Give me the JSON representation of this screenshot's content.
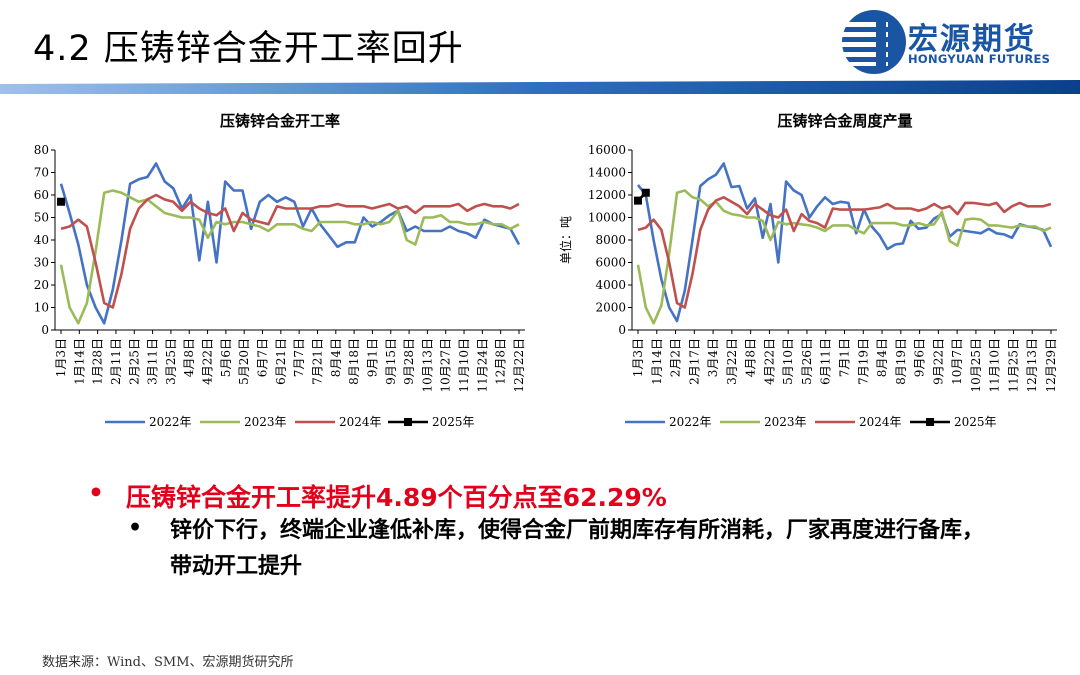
{
  "page": {
    "title": "4.2 压铸锌合金开工率回升",
    "logo_cn": "宏源期货",
    "logo_en": "HONGYUAN FUTURES",
    "bullet1": "压铸锌合金开工率提升4.89个百分点至62.29%",
    "bullet2": "锌价下行，终端企业逢低补库，使得合金厂前期库存有所消耗，厂家再度进行备库，带动开工提升",
    "source": "数据来源：Wind、SMM、宏源期货研究所",
    "colors": {
      "accent_red": "#e3001b",
      "brand_blue": "#1a55a3"
    }
  },
  "chart_data": [
    {
      "type": "line",
      "title": "压铸锌合金开工率",
      "ylabel": "",
      "ylim": [
        0,
        80
      ],
      "yticks": [
        0,
        10,
        20,
        30,
        40,
        50,
        60,
        70,
        80
      ],
      "xlabels": [
        "1月3日",
        "1月14日",
        "1月28日",
        "2月11日",
        "2月25日",
        "3月11日",
        "3月25日",
        "4月8日",
        "4月22日",
        "5月6日",
        "5月20日",
        "6月7日",
        "6月21日",
        "7月7日",
        "7月21日",
        "8月4日",
        "8月18日",
        "9月1日",
        "9月15日",
        "9月28日",
        "10月13日",
        "10月27日",
        "11月10日",
        "11月24日",
        "12月8日",
        "12月22日"
      ],
      "series": [
        {
          "name": "2022年",
          "color": "#4472c4",
          "values": [
            65,
            52,
            38,
            20,
            10,
            3,
            18,
            40,
            65,
            67,
            68,
            74,
            66,
            63,
            54,
            60,
            31,
            57,
            30,
            66,
            62,
            62,
            45,
            57,
            60,
            57,
            59,
            57,
            46,
            54,
            47,
            42,
            37,
            39,
            39,
            50,
            46,
            48,
            51,
            53,
            44,
            46,
            44,
            44,
            44,
            46,
            44,
            43,
            41,
            49,
            47,
            46,
            45,
            38
          ]
        },
        {
          "name": "2023年",
          "color": "#9bbb59",
          "values": [
            29,
            10,
            3,
            12,
            35,
            61,
            62,
            61,
            59,
            57,
            58,
            55,
            52,
            51,
            50,
            50,
            49,
            41,
            48,
            47,
            48,
            48,
            47,
            46,
            44,
            47,
            47,
            47,
            45,
            44,
            48,
            48,
            48,
            48,
            47,
            47,
            48,
            47,
            48,
            53,
            40,
            38,
            50,
            50,
            51,
            48,
            48,
            47,
            47,
            48,
            47,
            47,
            45,
            47
          ]
        },
        {
          "name": "2024年",
          "color": "#c0504d",
          "values": [
            45,
            46,
            49,
            46,
            30,
            12,
            10,
            25,
            45,
            54,
            58,
            60,
            58,
            57,
            53,
            57,
            54,
            52,
            51,
            54,
            44,
            52,
            49,
            48,
            47,
            55,
            54,
            54,
            54,
            54,
            55,
            55,
            56,
            55,
            55,
            55,
            54,
            55,
            56,
            54,
            55,
            52,
            55,
            55,
            55,
            55,
            56,
            53,
            55,
            56,
            55,
            55,
            54,
            56
          ]
        },
        {
          "name": "2025年",
          "color": "#000000",
          "values": [
            57
          ]
        }
      ]
    },
    {
      "type": "line",
      "title": "压铸锌合金周度产量",
      "ylabel": "单位：吨",
      "ylim": [
        0,
        16000
      ],
      "yticks": [
        0,
        2000,
        4000,
        6000,
        8000,
        10000,
        12000,
        14000,
        16000
      ],
      "xlabels": [
        "1月3日",
        "1月14日",
        "2月2日",
        "2月17日",
        "3月4日",
        "3月22日",
        "4月8日",
        "4月22日",
        "5月10日",
        "5月26日",
        "6月11日",
        "7月1日",
        "7月19日",
        "8月4日",
        "8月19日",
        "9月6日",
        "9月22日",
        "10月7日",
        "10月25日",
        "11月10日",
        "11月25日",
        "12月13日",
        "12月29日"
      ],
      "series": [
        {
          "name": "2022年",
          "color": "#4472c4",
          "values": [
            12900,
            12000,
            8000,
            4500,
            2000,
            800,
            3500,
            8000,
            12800,
            13400,
            13800,
            14800,
            12700,
            12800,
            10800,
            11700,
            8200,
            11200,
            6000,
            13200,
            12400,
            12000,
            10000,
            11000,
            11800,
            11200,
            11400,
            11300,
            8600,
            10700,
            9200,
            8400,
            7200,
            7600,
            7700,
            9700,
            9000,
            9100,
            9900,
            10300,
            8300,
            8900,
            8800,
            8700,
            8600,
            9000,
            8600,
            8500,
            8200,
            9400,
            9200,
            9100,
            8900,
            7400
          ]
        },
        {
          "name": "2023年",
          "color": "#9bbb59",
          "values": [
            5800,
            2000,
            600,
            2200,
            6800,
            12200,
            12400,
            11800,
            11600,
            11000,
            11400,
            10600,
            10300,
            10200,
            10000,
            10000,
            9700,
            8000,
            9600,
            9400,
            9500,
            9400,
            9300,
            9100,
            8800,
            9300,
            9300,
            9300,
            8900,
            8600,
            9500,
            9500,
            9500,
            9500,
            9300,
            9300,
            9500,
            9300,
            9400,
            10500,
            7900,
            7500,
            9800,
            9900,
            9800,
            9300,
            9300,
            9200,
            9100,
            9300,
            9200,
            9200,
            8800,
            9100
          ]
        },
        {
          "name": "2024年",
          "color": "#c0504d",
          "values": [
            8900,
            9100,
            9800,
            8900,
            6000,
            2400,
            2000,
            5000,
            8900,
            10700,
            11500,
            11800,
            11400,
            11000,
            10300,
            11200,
            10700,
            10200,
            10000,
            10700,
            8800,
            10300,
            9700,
            9500,
            9100,
            10800,
            10700,
            10700,
            10700,
            10700,
            10800,
            10900,
            11200,
            10800,
            10800,
            10800,
            10600,
            10800,
            11200,
            10800,
            11000,
            10300,
            11300,
            11300,
            11200,
            11100,
            11300,
            10500,
            11000,
            11300,
            11000,
            11000,
            11000,
            11200
          ]
        },
        {
          "name": "2025年",
          "color": "#000000",
          "values": [
            11500,
            12200
          ]
        }
      ]
    }
  ]
}
